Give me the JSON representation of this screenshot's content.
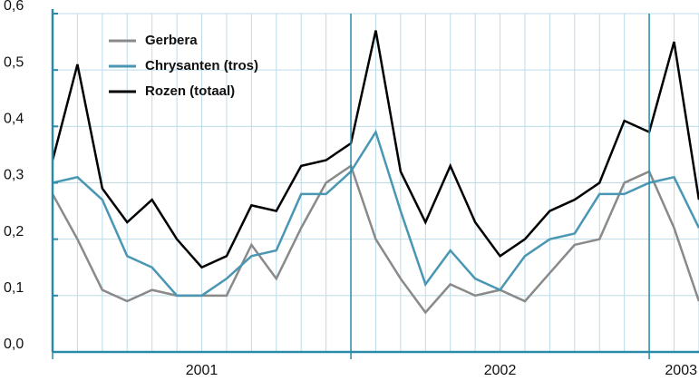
{
  "chart_data": {
    "type": "line",
    "categories": [
      null,
      null,
      null,
      null,
      null,
      null,
      null,
      null,
      null,
      null,
      null,
      null,
      null,
      null,
      null,
      null,
      null,
      null,
      null,
      null,
      null,
      null,
      null,
      null,
      null,
      null,
      null
    ],
    "xticks": [
      {
        "value": 0,
        "label": "2001"
      },
      {
        "value": 12,
        "label": "2002"
      },
      {
        "value": 24,
        "label": "2003"
      }
    ],
    "ylim": [
      0,
      0.6
    ],
    "yticks": [
      {
        "value": 0,
        "label": "0,0"
      },
      {
        "value": 0.1,
        "label": "0,1"
      },
      {
        "value": 0.2,
        "label": "0,2"
      },
      {
        "value": 0.3,
        "label": "0,3"
      },
      {
        "value": 0.4,
        "label": "0,4"
      },
      {
        "value": 0.5,
        "label": "0,5"
      },
      {
        "value": 0.6,
        "label": "0,6"
      }
    ],
    "grid": true,
    "legend": "upper-left",
    "series": [
      {
        "name": "Gerbera",
        "color": "#8a8a8a",
        "values": [
          0.28,
          0.2,
          0.11,
          0.09,
          0.11,
          0.1,
          0.1,
          0.1,
          0.19,
          0.13,
          0.22,
          0.3,
          0.33,
          0.2,
          0.13,
          0.07,
          0.12,
          0.1,
          0.11,
          0.09,
          0.14,
          0.19,
          0.2,
          0.3,
          0.32,
          0.22,
          0.09
        ]
      },
      {
        "name": "Chrysanten (tros)",
        "color": "#4a97b3",
        "values": [
          0.3,
          0.31,
          0.27,
          0.17,
          0.15,
          0.1,
          0.1,
          0.13,
          0.17,
          0.18,
          0.28,
          0.28,
          0.32,
          0.39,
          0.25,
          0.12,
          0.18,
          0.13,
          0.11,
          0.17,
          0.2,
          0.21,
          0.28,
          0.28,
          0.3,
          0.31,
          0.22
        ]
      },
      {
        "name": "Rozen (totaal)",
        "color": "#000000",
        "values": [
          0.34,
          0.51,
          0.29,
          0.23,
          0.27,
          0.2,
          0.15,
          0.17,
          0.26,
          0.25,
          0.33,
          0.34,
          0.37,
          0.57,
          0.32,
          0.23,
          0.33,
          0.23,
          0.17,
          0.2,
          0.25,
          0.27,
          0.3,
          0.41,
          0.39,
          0.55,
          0.27
        ]
      }
    ]
  }
}
